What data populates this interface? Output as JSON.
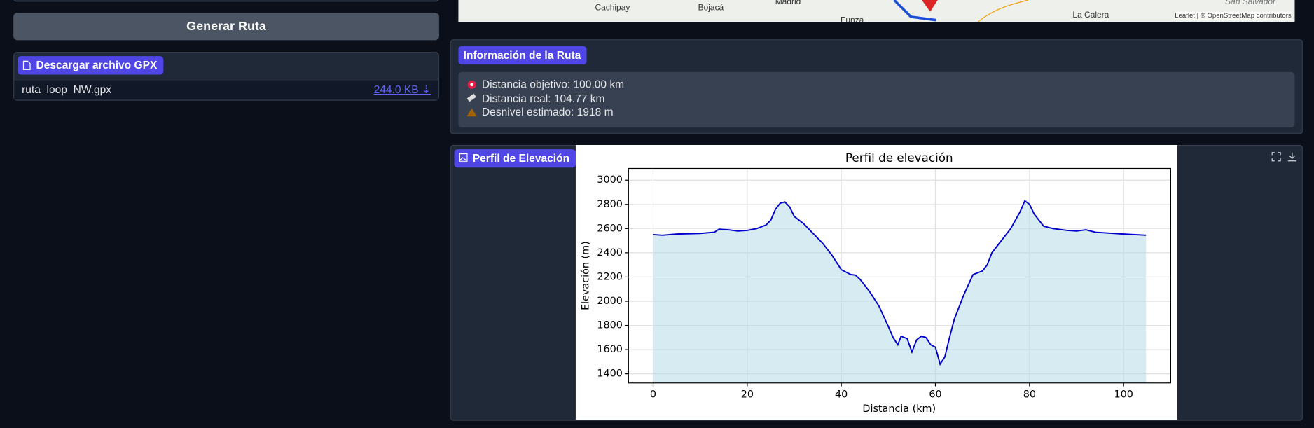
{
  "top_input": {},
  "generate_button": {
    "label": "Generar Ruta"
  },
  "gpx_file": {
    "badge": "Descargar archivo GPX",
    "file_name": "ruta_loop_NW.gpx",
    "file_size": "244.0 KB ⇣"
  },
  "map": {
    "labels": [
      "Cachipay",
      "Bojacá",
      "Madrid",
      "Funza",
      "La Calera",
      "San Salvador"
    ],
    "attribution": "Leaflet | © OpenStreetMap contributors"
  },
  "route_info": {
    "badge": "Información de la Ruta",
    "lines": [
      "Distancia objetivo: 100.00 km",
      "Distancia real: 104.77 km",
      "Desnivel estimado: 1918 m"
    ]
  },
  "elevation_panel": {
    "badge": "Perfil de Elevación"
  },
  "chart_data": {
    "type": "line",
    "title": "Perfil de elevación",
    "x_label": "Distancia (km)",
    "y_label": "Elevación (m)",
    "x": [
      0,
      2,
      5,
      10,
      13,
      14,
      16,
      18,
      20,
      22,
      24,
      25,
      26,
      27,
      28,
      29,
      30,
      32,
      34,
      36,
      38,
      40,
      42,
      43,
      44,
      46,
      48,
      50,
      51,
      52,
      52.7,
      54,
      55,
      56,
      57,
      58,
      59,
      60,
      61,
      62,
      63,
      64,
      66,
      68,
      70,
      71,
      72,
      74,
      76,
      78,
      79,
      80,
      81,
      83,
      85,
      88,
      90,
      92,
      94,
      100,
      104.77
    ],
    "series": [
      {
        "color": "#0000cd",
        "fill": "#add8e6",
        "values": [
          2550,
          2545,
          2555,
          2560,
          2570,
          2595,
          2590,
          2580,
          2585,
          2600,
          2630,
          2670,
          2760,
          2810,
          2820,
          2780,
          2700,
          2640,
          2560,
          2480,
          2380,
          2260,
          2220,
          2215,
          2180,
          2080,
          1960,
          1790,
          1700,
          1640,
          1710,
          1690,
          1580,
          1680,
          1710,
          1700,
          1640,
          1620,
          1480,
          1540,
          1700,
          1850,
          2050,
          2220,
          2250,
          2300,
          2400,
          2500,
          2600,
          2740,
          2830,
          2800,
          2720,
          2620,
          2600,
          2585,
          2580,
          2590,
          2570,
          2555,
          2545
        ]
      }
    ],
    "xlim": [
      -5.24,
      110.01
    ],
    "xticks": [
      0,
      20,
      40,
      60,
      80,
      100
    ],
    "ylim": [
      1324,
      3097
    ],
    "yticks": [
      1400,
      1600,
      1800,
      2000,
      2200,
      2400,
      2600,
      2800,
      3000
    ],
    "grid": true
  }
}
